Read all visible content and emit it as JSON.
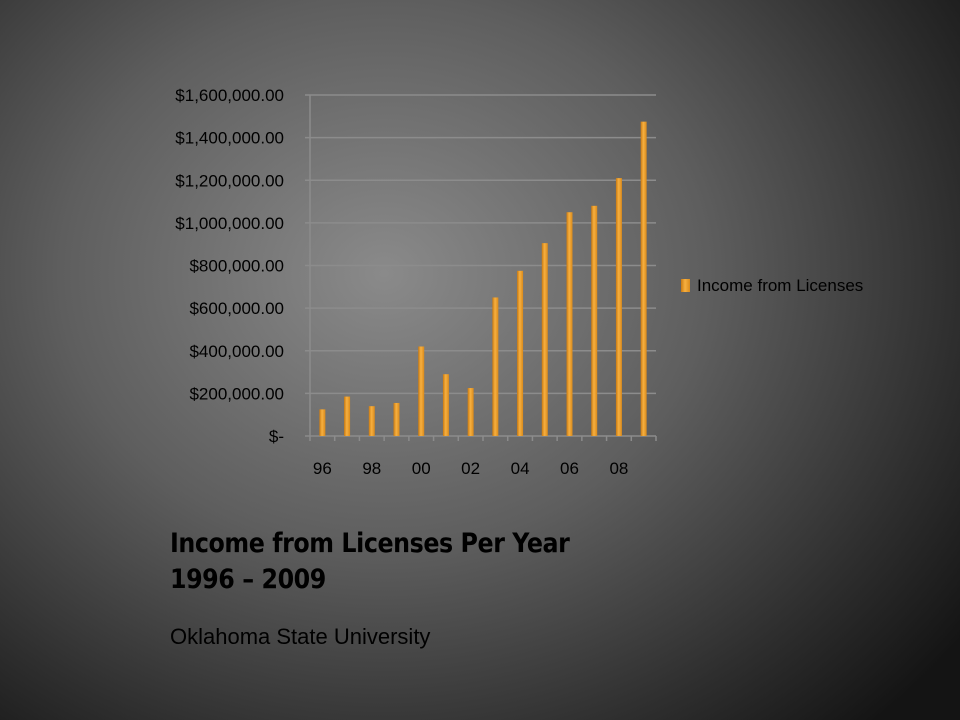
{
  "slide": {
    "title_line1": "Income from Licenses Per Year",
    "title_line2": "1996 – 2009",
    "subtitle": "Oklahoma State University"
  },
  "chart_data": {
    "type": "bar",
    "years": [
      1996,
      1997,
      1998,
      1999,
      2000,
      2001,
      2002,
      2003,
      2004,
      2005,
      2006,
      2007,
      2008,
      2009
    ],
    "x_tick_labels": [
      "96",
      "98",
      "00",
      "02",
      "04",
      "06",
      "08"
    ],
    "series": [
      {
        "name": "Income from Licenses",
        "values": [
          125000,
          185000,
          140000,
          155000,
          420000,
          290000,
          225000,
          650000,
          775000,
          905000,
          1050000,
          1080000,
          1210000,
          1475000
        ]
      }
    ],
    "y_tick_labels": [
      "$-",
      "$200,000.00",
      "$400,000.00",
      "$600,000.00",
      "$800,000.00",
      "$1,000,000.00",
      "$1,200,000.00",
      "$1,400,000.00",
      "$1,600,000.00"
    ],
    "ylim": [
      0,
      1600000
    ],
    "y_step": 200000,
    "grid": true,
    "legend_position": "right",
    "bar_color": "#f0a030"
  }
}
